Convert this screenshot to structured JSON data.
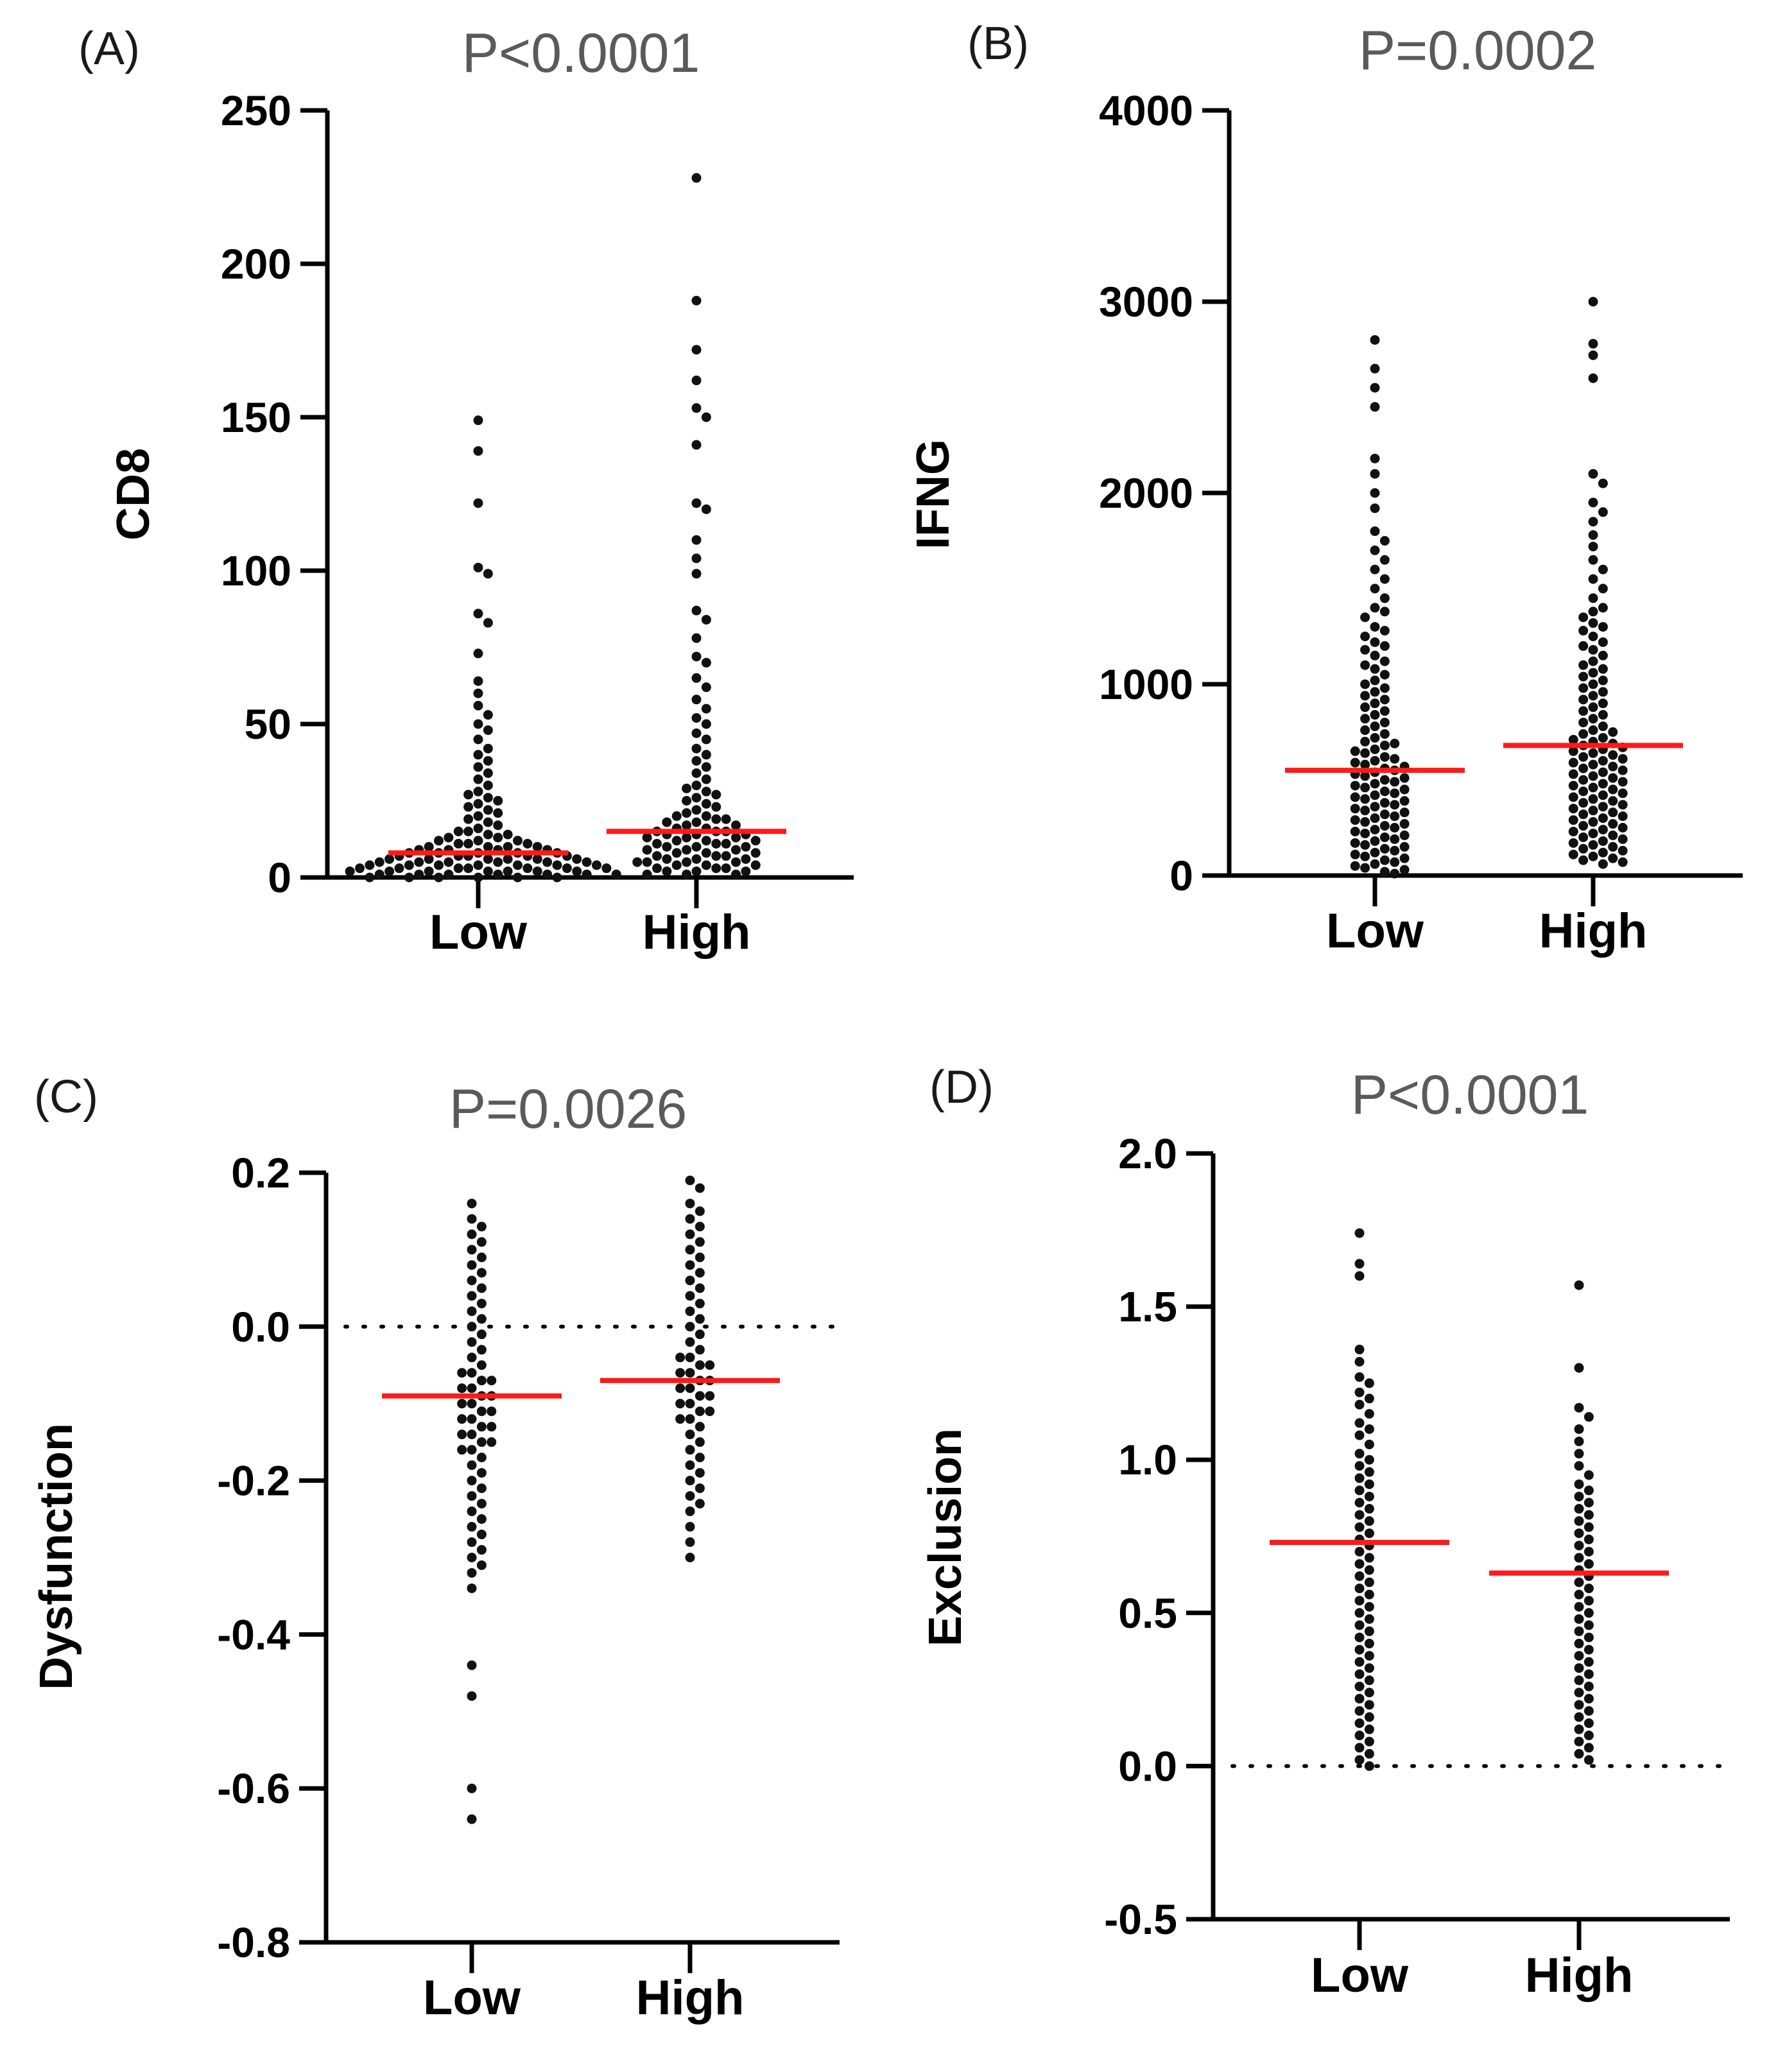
{
  "chart_data": [
    {
      "type": "scatter",
      "panel": "(A)",
      "title": "P<0.0001",
      "xlabel": "",
      "ylabel": "CD8",
      "categories": [
        "Low",
        "High"
      ],
      "ylim": [
        0,
        250
      ],
      "yticks": [
        "0",
        "50",
        "100",
        "150",
        "200",
        "250"
      ],
      "yticks_values": [
        0,
        50,
        100,
        150,
        200,
        250
      ],
      "zero_line": false,
      "medians": [
        8,
        15
      ],
      "series": [
        {
          "name": "Low",
          "values": [
            149,
            139,
            122,
            101,
            99,
            86,
            83,
            73,
            64,
            60,
            56,
            53,
            50,
            48,
            45,
            42,
            40,
            38,
            36,
            34,
            32,
            30,
            28,
            27,
            26,
            25,
            24,
            23,
            22,
            21,
            20,
            19,
            18,
            17,
            16,
            15,
            15,
            14,
            14,
            13,
            13,
            12,
            12,
            12,
            11,
            11,
            11,
            10,
            10,
            10,
            10,
            9,
            9,
            9,
            9,
            8,
            8,
            8,
            8,
            8,
            7,
            7,
            7,
            7,
            7,
            6,
            6,
            6,
            6,
            6,
            6,
            5,
            5,
            5,
            5,
            5,
            5,
            4,
            4,
            4,
            4,
            4,
            4,
            4,
            3,
            3,
            3,
            3,
            3,
            3,
            3,
            2,
            2,
            2,
            2,
            2,
            2,
            2,
            1,
            1,
            1,
            1,
            1,
            1,
            1,
            0,
            0,
            0,
            0,
            0,
            0
          ]
        },
        {
          "name": "High",
          "values": [
            228,
            188,
            172,
            162,
            153,
            150,
            141,
            122,
            120,
            110,
            104,
            99,
            87,
            84,
            78,
            72,
            70,
            65,
            62,
            58,
            55,
            52,
            50,
            47,
            45,
            42,
            40,
            38,
            36,
            34,
            32,
            30,
            29,
            28,
            27,
            26,
            25,
            24,
            23,
            22,
            21,
            20,
            20,
            19,
            19,
            18,
            18,
            17,
            17,
            16,
            16,
            15,
            15,
            15,
            14,
            14,
            14,
            13,
            13,
            13,
            12,
            12,
            12,
            11,
            11,
            11,
            10,
            10,
            10,
            9,
            9,
            9,
            8,
            8,
            8,
            7,
            7,
            7,
            6,
            6,
            6,
            5,
            5,
            5,
            5,
            4,
            4,
            4,
            3,
            3,
            3,
            2,
            2,
            2,
            1,
            1,
            1
          ]
        }
      ]
    },
    {
      "type": "scatter",
      "panel": "(B)",
      "title": "P=0.0002",
      "xlabel": "",
      "ylabel": "IFNG",
      "categories": [
        "Low",
        "High"
      ],
      "ylim": [
        0,
        4000
      ],
      "yticks": [
        "0",
        "1000",
        "2000",
        "3000",
        "4000"
      ],
      "yticks_values": [
        0,
        1000,
        2000,
        3000,
        4000
      ],
      "zero_line": false,
      "medians": [
        550,
        680
      ],
      "series": [
        {
          "name": "Low",
          "values": [
            2800,
            2650,
            2550,
            2450,
            2180,
            2100,
            2000,
            1920,
            1800,
            1750,
            1700,
            1650,
            1600,
            1550,
            1500,
            1450,
            1400,
            1380,
            1350,
            1300,
            1280,
            1250,
            1220,
            1200,
            1180,
            1150,
            1120,
            1100,
            1080,
            1050,
            1020,
            1000,
            980,
            960,
            940,
            920,
            900,
            880,
            860,
            840,
            820,
            800,
            780,
            760,
            740,
            720,
            700,
            690,
            680,
            660,
            650,
            640,
            620,
            610,
            600,
            590,
            580,
            570,
            560,
            550,
            540,
            530,
            520,
            510,
            500,
            490,
            480,
            470,
            460,
            450,
            440,
            430,
            420,
            410,
            400,
            390,
            380,
            370,
            360,
            350,
            340,
            330,
            320,
            310,
            300,
            290,
            280,
            270,
            260,
            250,
            240,
            230,
            220,
            210,
            200,
            190,
            180,
            170,
            160,
            150,
            140,
            130,
            120,
            110,
            100,
            90,
            80,
            70,
            60,
            50,
            40,
            30,
            20,
            10
          ]
        },
        {
          "name": "High",
          "values": [
            3000,
            2780,
            2720,
            2600,
            2100,
            2050,
            1950,
            1900,
            1850,
            1780,
            1720,
            1650,
            1600,
            1550,
            1500,
            1450,
            1400,
            1380,
            1350,
            1320,
            1300,
            1280,
            1250,
            1220,
            1200,
            1180,
            1150,
            1120,
            1100,
            1080,
            1060,
            1040,
            1020,
            1000,
            980,
            960,
            940,
            920,
            900,
            880,
            860,
            840,
            820,
            800,
            780,
            760,
            750,
            740,
            720,
            710,
            700,
            690,
            680,
            670,
            660,
            650,
            640,
            630,
            620,
            610,
            600,
            590,
            580,
            570,
            560,
            550,
            540,
            530,
            520,
            510,
            500,
            490,
            480,
            470,
            460,
            450,
            440,
            430,
            420,
            410,
            400,
            390,
            380,
            370,
            360,
            350,
            340,
            330,
            320,
            310,
            300,
            290,
            280,
            270,
            260,
            250,
            240,
            230,
            220,
            210,
            200,
            190,
            180,
            170,
            160,
            150,
            140,
            130,
            120,
            110,
            100,
            90,
            80,
            70,
            60
          ]
        }
      ]
    },
    {
      "type": "scatter",
      "panel": "(C)",
      "title": "P=0.0026",
      "xlabel": "",
      "ylabel": "Dysfunction",
      "categories": [
        "Low",
        "High"
      ],
      "ylim": [
        -0.8,
        0.2
      ],
      "yticks": [
        "-0.8",
        "-0.6",
        "-0.4",
        "-0.2",
        "0.0",
        "0.2"
      ],
      "yticks_values": [
        -0.8,
        -0.6,
        -0.4,
        -0.2,
        0.0,
        0.2
      ],
      "zero_line": true,
      "medians": [
        -0.09,
        -0.07
      ],
      "series": [
        {
          "name": "Low",
          "values": [
            0.16,
            0.14,
            0.13,
            0.12,
            0.11,
            0.1,
            0.09,
            0.08,
            0.07,
            0.06,
            0.05,
            0.04,
            0.03,
            0.02,
            0.01,
            0.0,
            -0.01,
            -0.02,
            -0.03,
            -0.04,
            -0.05,
            -0.06,
            -0.06,
            -0.07,
            -0.07,
            -0.08,
            -0.08,
            -0.09,
            -0.09,
            -0.1,
            -0.1,
            -0.11,
            -0.11,
            -0.12,
            -0.12,
            -0.13,
            -0.13,
            -0.14,
            -0.14,
            -0.15,
            -0.15,
            -0.16,
            -0.16,
            -0.17,
            -0.18,
            -0.19,
            -0.2,
            -0.21,
            -0.22,
            -0.23,
            -0.24,
            -0.25,
            -0.26,
            -0.27,
            -0.28,
            -0.29,
            -0.3,
            -0.31,
            -0.32,
            -0.34,
            -0.44,
            -0.48,
            -0.6,
            -0.64
          ]
        },
        {
          "name": "High",
          "values": [
            0.19,
            0.18,
            0.16,
            0.15,
            0.14,
            0.13,
            0.12,
            0.11,
            0.1,
            0.09,
            0.08,
            0.07,
            0.06,
            0.05,
            0.04,
            0.03,
            0.02,
            0.01,
            0.0,
            -0.01,
            -0.02,
            -0.03,
            -0.04,
            -0.04,
            -0.05,
            -0.05,
            -0.06,
            -0.06,
            -0.07,
            -0.07,
            -0.08,
            -0.08,
            -0.09,
            -0.09,
            -0.1,
            -0.1,
            -0.11,
            -0.11,
            -0.12,
            -0.12,
            -0.13,
            -0.14,
            -0.15,
            -0.16,
            -0.17,
            -0.18,
            -0.19,
            -0.2,
            -0.21,
            -0.22,
            -0.23,
            -0.24,
            -0.26,
            -0.28,
            -0.3
          ]
        }
      ]
    },
    {
      "type": "scatter",
      "panel": "(D)",
      "title": "P<0.0001",
      "xlabel": "",
      "ylabel": "Exclusion",
      "categories": [
        "Low",
        "High"
      ],
      "ylim": [
        -0.5,
        2.0
      ],
      "yticks": [
        "-0.5",
        "0.0",
        "0.5",
        "1.0",
        "1.5",
        "2.0"
      ],
      "yticks_values": [
        -0.5,
        0.0,
        0.5,
        1.0,
        1.5,
        2.0
      ],
      "zero_line": true,
      "medians": [
        0.73,
        0.63
      ],
      "series": [
        {
          "name": "Low",
          "values": [
            1.74,
            1.64,
            1.6,
            1.36,
            1.32,
            1.27,
            1.25,
            1.22,
            1.2,
            1.18,
            1.15,
            1.12,
            1.1,
            1.08,
            1.05,
            1.02,
            1.0,
            0.98,
            0.96,
            0.94,
            0.92,
            0.9,
            0.88,
            0.86,
            0.84,
            0.82,
            0.8,
            0.78,
            0.76,
            0.74,
            0.72,
            0.7,
            0.68,
            0.66,
            0.64,
            0.62,
            0.6,
            0.58,
            0.56,
            0.54,
            0.52,
            0.5,
            0.48,
            0.46,
            0.44,
            0.42,
            0.4,
            0.38,
            0.36,
            0.34,
            0.32,
            0.3,
            0.28,
            0.26,
            0.24,
            0.22,
            0.2,
            0.18,
            0.16,
            0.14,
            0.12,
            0.1,
            0.08,
            0.06,
            0.04,
            0.02,
            0.0
          ]
        },
        {
          "name": "High",
          "values": [
            1.57,
            1.3,
            1.17,
            1.14,
            1.1,
            1.06,
            1.02,
            0.98,
            0.95,
            0.92,
            0.9,
            0.88,
            0.86,
            0.84,
            0.82,
            0.8,
            0.78,
            0.76,
            0.74,
            0.72,
            0.7,
            0.68,
            0.66,
            0.64,
            0.62,
            0.6,
            0.58,
            0.56,
            0.54,
            0.52,
            0.5,
            0.48,
            0.46,
            0.44,
            0.42,
            0.4,
            0.38,
            0.36,
            0.34,
            0.32,
            0.3,
            0.28,
            0.26,
            0.24,
            0.22,
            0.2,
            0.18,
            0.16,
            0.14,
            0.12,
            0.1,
            0.08,
            0.06,
            0.04,
            0.02
          ]
        }
      ]
    }
  ]
}
